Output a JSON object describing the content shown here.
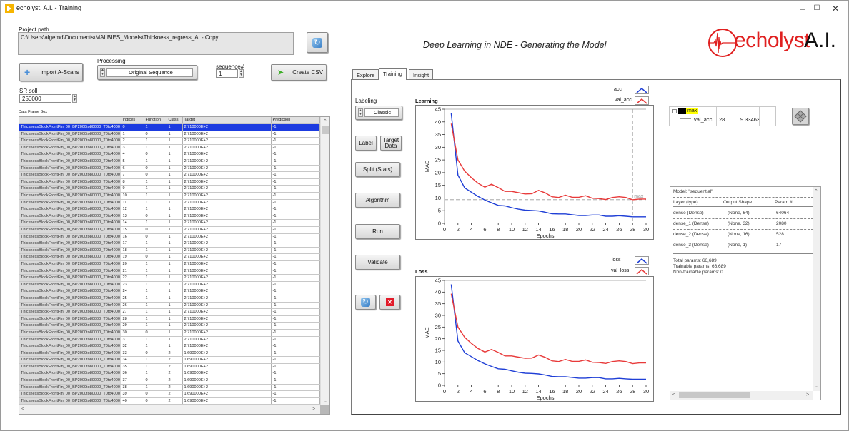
{
  "window": {
    "title": "echolyst. A.I. - Training",
    "controls": [
      "minimize",
      "maximize",
      "close"
    ]
  },
  "project": {
    "path_label": "Project path",
    "path_value": "C:\\Users\\algemd\\Documents\\MALBIES_Models\\Thickness_regress_AI - Copy"
  },
  "toolbar": {
    "import_label": "Import A-Scans",
    "processing_label": "Processing",
    "processing_value": "Original Sequence",
    "sequence_label": "sequence#",
    "sequence_value": "1",
    "create_csv_label": "Create CSV",
    "sr_label": "SR soll",
    "sr_value": "250000"
  },
  "dataframe": {
    "label": "Data Frame Box",
    "columns": [
      "",
      "Indices",
      "Function",
      "Class",
      "Target",
      "Prediction",
      ""
    ],
    "row_name": "ThicknessBlockFrontFin_00_BP2000to80000_T0to4000",
    "rows": [
      [
        "0",
        "1",
        "1",
        "2.710000E+2",
        "-1"
      ],
      [
        "1",
        "0",
        "1",
        "2.710000E+2",
        "-1"
      ],
      [
        "2",
        "1",
        "1",
        "2.710000E+2",
        "-1"
      ],
      [
        "3",
        "1",
        "1",
        "2.710000E+2",
        "-1"
      ],
      [
        "4",
        "0",
        "1",
        "2.710000E+2",
        "-1"
      ],
      [
        "5",
        "1",
        "1",
        "2.710000E+2",
        "-1"
      ],
      [
        "6",
        "0",
        "1",
        "2.710000E+2",
        "-1"
      ],
      [
        "7",
        "0",
        "1",
        "2.710000E+2",
        "-1"
      ],
      [
        "8",
        "1",
        "1",
        "2.710000E+2",
        "-1"
      ],
      [
        "9",
        "1",
        "1",
        "2.710000E+2",
        "-1"
      ],
      [
        "10",
        "1",
        "1",
        "2.710000E+2",
        "-1"
      ],
      [
        "11",
        "1",
        "1",
        "2.710000E+2",
        "-1"
      ],
      [
        "12",
        "1",
        "1",
        "2.710000E+2",
        "-1"
      ],
      [
        "13",
        "0",
        "1",
        "2.710000E+2",
        "-1"
      ],
      [
        "14",
        "1",
        "1",
        "2.710000E+2",
        "-1"
      ],
      [
        "15",
        "0",
        "1",
        "2.710000E+2",
        "-1"
      ],
      [
        "16",
        "0",
        "1",
        "2.710000E+2",
        "-1"
      ],
      [
        "17",
        "1",
        "1",
        "2.710000E+2",
        "-1"
      ],
      [
        "18",
        "1",
        "1",
        "2.710000E+2",
        "-1"
      ],
      [
        "19",
        "0",
        "1",
        "2.710000E+2",
        "-1"
      ],
      [
        "20",
        "1",
        "1",
        "2.710000E+2",
        "-1"
      ],
      [
        "21",
        "1",
        "1",
        "2.710000E+2",
        "-1"
      ],
      [
        "22",
        "1",
        "1",
        "2.710000E+2",
        "-1"
      ],
      [
        "23",
        "1",
        "1",
        "2.710000E+2",
        "-1"
      ],
      [
        "24",
        "1",
        "1",
        "2.710000E+2",
        "-1"
      ],
      [
        "25",
        "1",
        "1",
        "2.710000E+2",
        "-1"
      ],
      [
        "26",
        "1",
        "1",
        "2.710000E+2",
        "-1"
      ],
      [
        "27",
        "1",
        "1",
        "2.710000E+2",
        "-1"
      ],
      [
        "28",
        "1",
        "1",
        "2.710000E+2",
        "-1"
      ],
      [
        "29",
        "1",
        "1",
        "2.710000E+2",
        "-1"
      ],
      [
        "30",
        "0",
        "1",
        "2.710000E+2",
        "-1"
      ],
      [
        "31",
        "1",
        "1",
        "2.710000E+2",
        "-1"
      ],
      [
        "32",
        "1",
        "1",
        "2.710000E+2",
        "-1"
      ],
      [
        "33",
        "0",
        "2",
        "1.690000E+2",
        "-1"
      ],
      [
        "34",
        "1",
        "2",
        "1.690000E+2",
        "-1"
      ],
      [
        "35",
        "1",
        "2",
        "1.690000E+2",
        "-1"
      ],
      [
        "36",
        "1",
        "2",
        "1.690000E+2",
        "-1"
      ],
      [
        "37",
        "0",
        "2",
        "1.690000E+2",
        "-1"
      ],
      [
        "38",
        "1",
        "2",
        "1.690000E+2",
        "-1"
      ],
      [
        "39",
        "0",
        "2",
        "1.690000E+2",
        "-1"
      ],
      [
        "40",
        "0",
        "2",
        "1.690000E+2",
        "-1"
      ]
    ],
    "selected_row": 0
  },
  "header": {
    "subtitle": "Deep Learning in NDE - Generating the Model",
    "logo_text": "echolyst",
    "logo_suffix": "A.I.",
    "brand_color": "#e02020"
  },
  "tabs": [
    {
      "label": "Explore",
      "active": false
    },
    {
      "label": "Training",
      "active": true
    },
    {
      "label": "Insight",
      "active": false
    }
  ],
  "training": {
    "labeling_label": "Labeling",
    "labeling_value": "Classic",
    "buttons": {
      "label": "Label",
      "target_data": "Target Data",
      "split": "Split (Stats)",
      "algorithm": "Algorithm",
      "run": "Run",
      "validate": "Validate"
    }
  },
  "cursor_table": {
    "name": "max",
    "series": "val_acc",
    "x": "28",
    "y": "9.33463"
  },
  "model_summary": {
    "title": "Model: \"sequential\"",
    "headers": [
      "Layer (type)",
      "Output Shape",
      "Param #"
    ],
    "layers": [
      [
        "dense (Dense)",
        "(None, 64)",
        "64064"
      ],
      [
        "dense_1 (Dense)",
        "(None, 32)",
        "2080"
      ],
      [
        "dense_2 (Dense)",
        "(None, 16)",
        "528"
      ],
      [
        "dense_3 (Dense)",
        "(None, 1)",
        "17"
      ]
    ],
    "total": "Total params: 66,689",
    "trainable": "Trainable params: 66,689",
    "non_trainable": "Non-trainable params: 0"
  },
  "chart_data": [
    {
      "type": "line",
      "title": "Learning",
      "xlabel": "Epochs",
      "ylabel": "MAE",
      "xlim": [
        0,
        30
      ],
      "ylim": [
        0,
        45
      ],
      "xticks": [
        0,
        2,
        4,
        6,
        8,
        10,
        12,
        14,
        16,
        18,
        20,
        22,
        24,
        26,
        28,
        30
      ],
      "yticks": [
        0,
        5,
        10,
        15,
        20,
        25,
        30,
        35,
        40,
        45
      ],
      "legend_position": "top-right",
      "x": [
        1,
        2,
        3,
        4,
        5,
        6,
        7,
        8,
        9,
        10,
        11,
        12,
        13,
        14,
        15,
        16,
        17,
        18,
        19,
        20,
        21,
        22,
        23,
        24,
        25,
        26,
        27,
        28,
        29,
        30
      ],
      "series": [
        {
          "name": "acc",
          "color": "#1f3fd6",
          "values": [
            43.3,
            19,
            14,
            12.3,
            10.6,
            9.2,
            8.1,
            7.1,
            6.9,
            6.2,
            5.6,
            5.2,
            5.1,
            4.9,
            4.4,
            3.8,
            3.7,
            3.7,
            3.4,
            3.1,
            3.1,
            3.3,
            3.3,
            2.8,
            2.8,
            3.0,
            2.8,
            2.6,
            2.6,
            2.6
          ]
        },
        {
          "name": "val_acc",
          "color": "#e83a3a",
          "values": [
            39.3,
            25,
            20.6,
            18,
            15.8,
            14.3,
            15.4,
            14.1,
            12.6,
            12.6,
            12.1,
            11.6,
            11.7,
            13.0,
            12.0,
            10.5,
            10.2,
            11.1,
            10.3,
            10.3,
            10.9,
            9.9,
            9.8,
            9.4,
            10.2,
            10.5,
            10.2,
            9.3,
            9.6,
            9.6
          ]
        }
      ],
      "annotations": [
        {
          "label": "max",
          "x": 28,
          "y": 9.33463,
          "style": "dashed crosshair"
        }
      ]
    },
    {
      "type": "line",
      "title": "Loss",
      "xlabel": "Epochs",
      "ylabel": "MAE",
      "xlim": [
        0,
        30
      ],
      "ylim": [
        0,
        45
      ],
      "xticks": [
        0,
        2,
        4,
        6,
        8,
        10,
        12,
        14,
        16,
        18,
        20,
        22,
        24,
        26,
        28,
        30
      ],
      "yticks": [
        0,
        5,
        10,
        15,
        20,
        25,
        30,
        35,
        40,
        45
      ],
      "legend_position": "top-right",
      "x": [
        1,
        2,
        3,
        4,
        5,
        6,
        7,
        8,
        9,
        10,
        11,
        12,
        13,
        14,
        15,
        16,
        17,
        18,
        19,
        20,
        21,
        22,
        23,
        24,
        25,
        26,
        27,
        28,
        29,
        30
      ],
      "series": [
        {
          "name": "loss",
          "color": "#1f3fd6",
          "values": [
            43.3,
            19,
            14,
            12.3,
            10.6,
            9.2,
            8.1,
            7.1,
            6.9,
            6.2,
            5.6,
            5.2,
            5.1,
            4.9,
            4.4,
            3.8,
            3.7,
            3.7,
            3.4,
            3.1,
            3.1,
            3.3,
            3.3,
            2.8,
            2.8,
            3.0,
            2.8,
            2.6,
            2.6,
            2.6
          ]
        },
        {
          "name": "val_loss",
          "color": "#e83a3a",
          "values": [
            39.3,
            25,
            20.6,
            18,
            15.8,
            14.3,
            15.4,
            14.1,
            12.6,
            12.6,
            12.1,
            11.6,
            11.7,
            13.0,
            12.0,
            10.5,
            10.2,
            11.1,
            10.3,
            10.3,
            10.9,
            9.9,
            9.8,
            9.4,
            10.2,
            10.5,
            10.2,
            9.3,
            9.6,
            9.6
          ]
        }
      ]
    }
  ]
}
